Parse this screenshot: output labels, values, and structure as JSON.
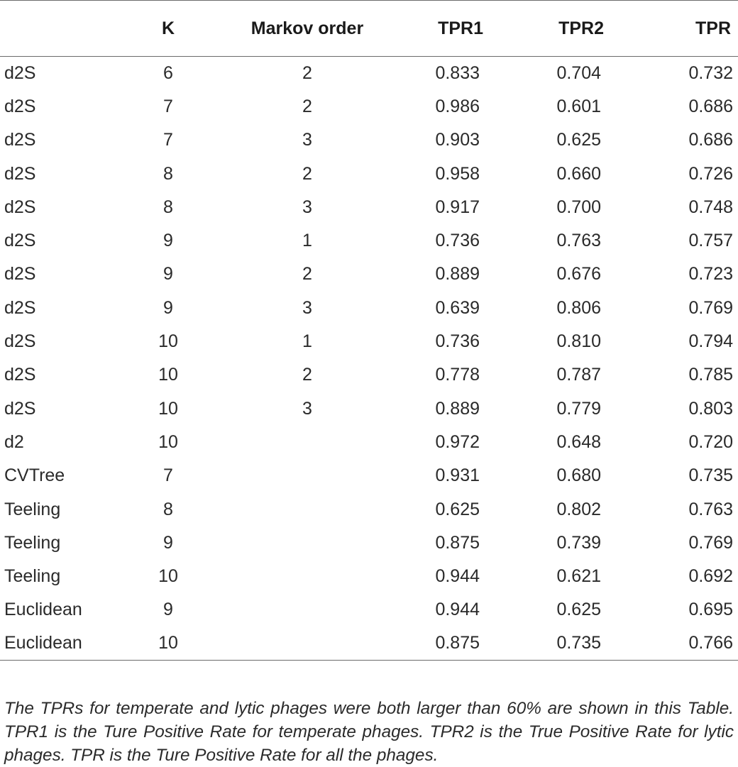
{
  "table": {
    "headers": {
      "method": "",
      "k": "K",
      "markov": "Markov order",
      "tpr1": "TPR1",
      "tpr2": "TPR2",
      "tpr": "TPR"
    },
    "rows": [
      {
        "method": "d2S",
        "k": "6",
        "markov": "2",
        "tpr1": "0.833",
        "tpr2": "0.704",
        "tpr": "0.732"
      },
      {
        "method": "d2S",
        "k": "7",
        "markov": "2",
        "tpr1": "0.986",
        "tpr2": "0.601",
        "tpr": "0.686"
      },
      {
        "method": "d2S",
        "k": "7",
        "markov": "3",
        "tpr1": "0.903",
        "tpr2": "0.625",
        "tpr": "0.686"
      },
      {
        "method": "d2S",
        "k": "8",
        "markov": "2",
        "tpr1": "0.958",
        "tpr2": "0.660",
        "tpr": "0.726"
      },
      {
        "method": "d2S",
        "k": "8",
        "markov": "3",
        "tpr1": "0.917",
        "tpr2": "0.700",
        "tpr": "0.748"
      },
      {
        "method": "d2S",
        "k": "9",
        "markov": "1",
        "tpr1": "0.736",
        "tpr2": "0.763",
        "tpr": "0.757"
      },
      {
        "method": "d2S",
        "k": "9",
        "markov": "2",
        "tpr1": "0.889",
        "tpr2": "0.676",
        "tpr": "0.723"
      },
      {
        "method": "d2S",
        "k": "9",
        "markov": "3",
        "tpr1": "0.639",
        "tpr2": "0.806",
        "tpr": "0.769"
      },
      {
        "method": "d2S",
        "k": "10",
        "markov": "1",
        "tpr1": "0.736",
        "tpr2": "0.810",
        "tpr": "0.794"
      },
      {
        "method": "d2S",
        "k": "10",
        "markov": "2",
        "tpr1": "0.778",
        "tpr2": "0.787",
        "tpr": "0.785"
      },
      {
        "method": "d2S",
        "k": "10",
        "markov": "3",
        "tpr1": "0.889",
        "tpr2": "0.779",
        "tpr": "0.803"
      },
      {
        "method": "d2",
        "k": "10",
        "markov": "",
        "tpr1": "0.972",
        "tpr2": "0.648",
        "tpr": "0.720"
      },
      {
        "method": "CVTree",
        "k": "7",
        "markov": "",
        "tpr1": "0.931",
        "tpr2": "0.680",
        "tpr": "0.735"
      },
      {
        "method": "Teeling",
        "k": "8",
        "markov": "",
        "tpr1": "0.625",
        "tpr2": "0.802",
        "tpr": "0.763"
      },
      {
        "method": "Teeling",
        "k": "9",
        "markov": "",
        "tpr1": "0.875",
        "tpr2": "0.739",
        "tpr": "0.769"
      },
      {
        "method": "Teeling",
        "k": "10",
        "markov": "",
        "tpr1": "0.944",
        "tpr2": "0.621",
        "tpr": "0.692"
      },
      {
        "method": "Euclidean",
        "k": "9",
        "markov": "",
        "tpr1": "0.944",
        "tpr2": "0.625",
        "tpr": "0.695"
      },
      {
        "method": "Euclidean",
        "k": "10",
        "markov": "",
        "tpr1": "0.875",
        "tpr2": "0.735",
        "tpr": "0.766"
      }
    ]
  },
  "footnote": "The TPRs for temperate and lytic phages were both larger than 60% are shown in this Table. TPR1 is the Ture Positive Rate for temperate phages. TPR2 is the True Positive Rate for lytic phages. TPR is the Ture Positive Rate for all the phages."
}
